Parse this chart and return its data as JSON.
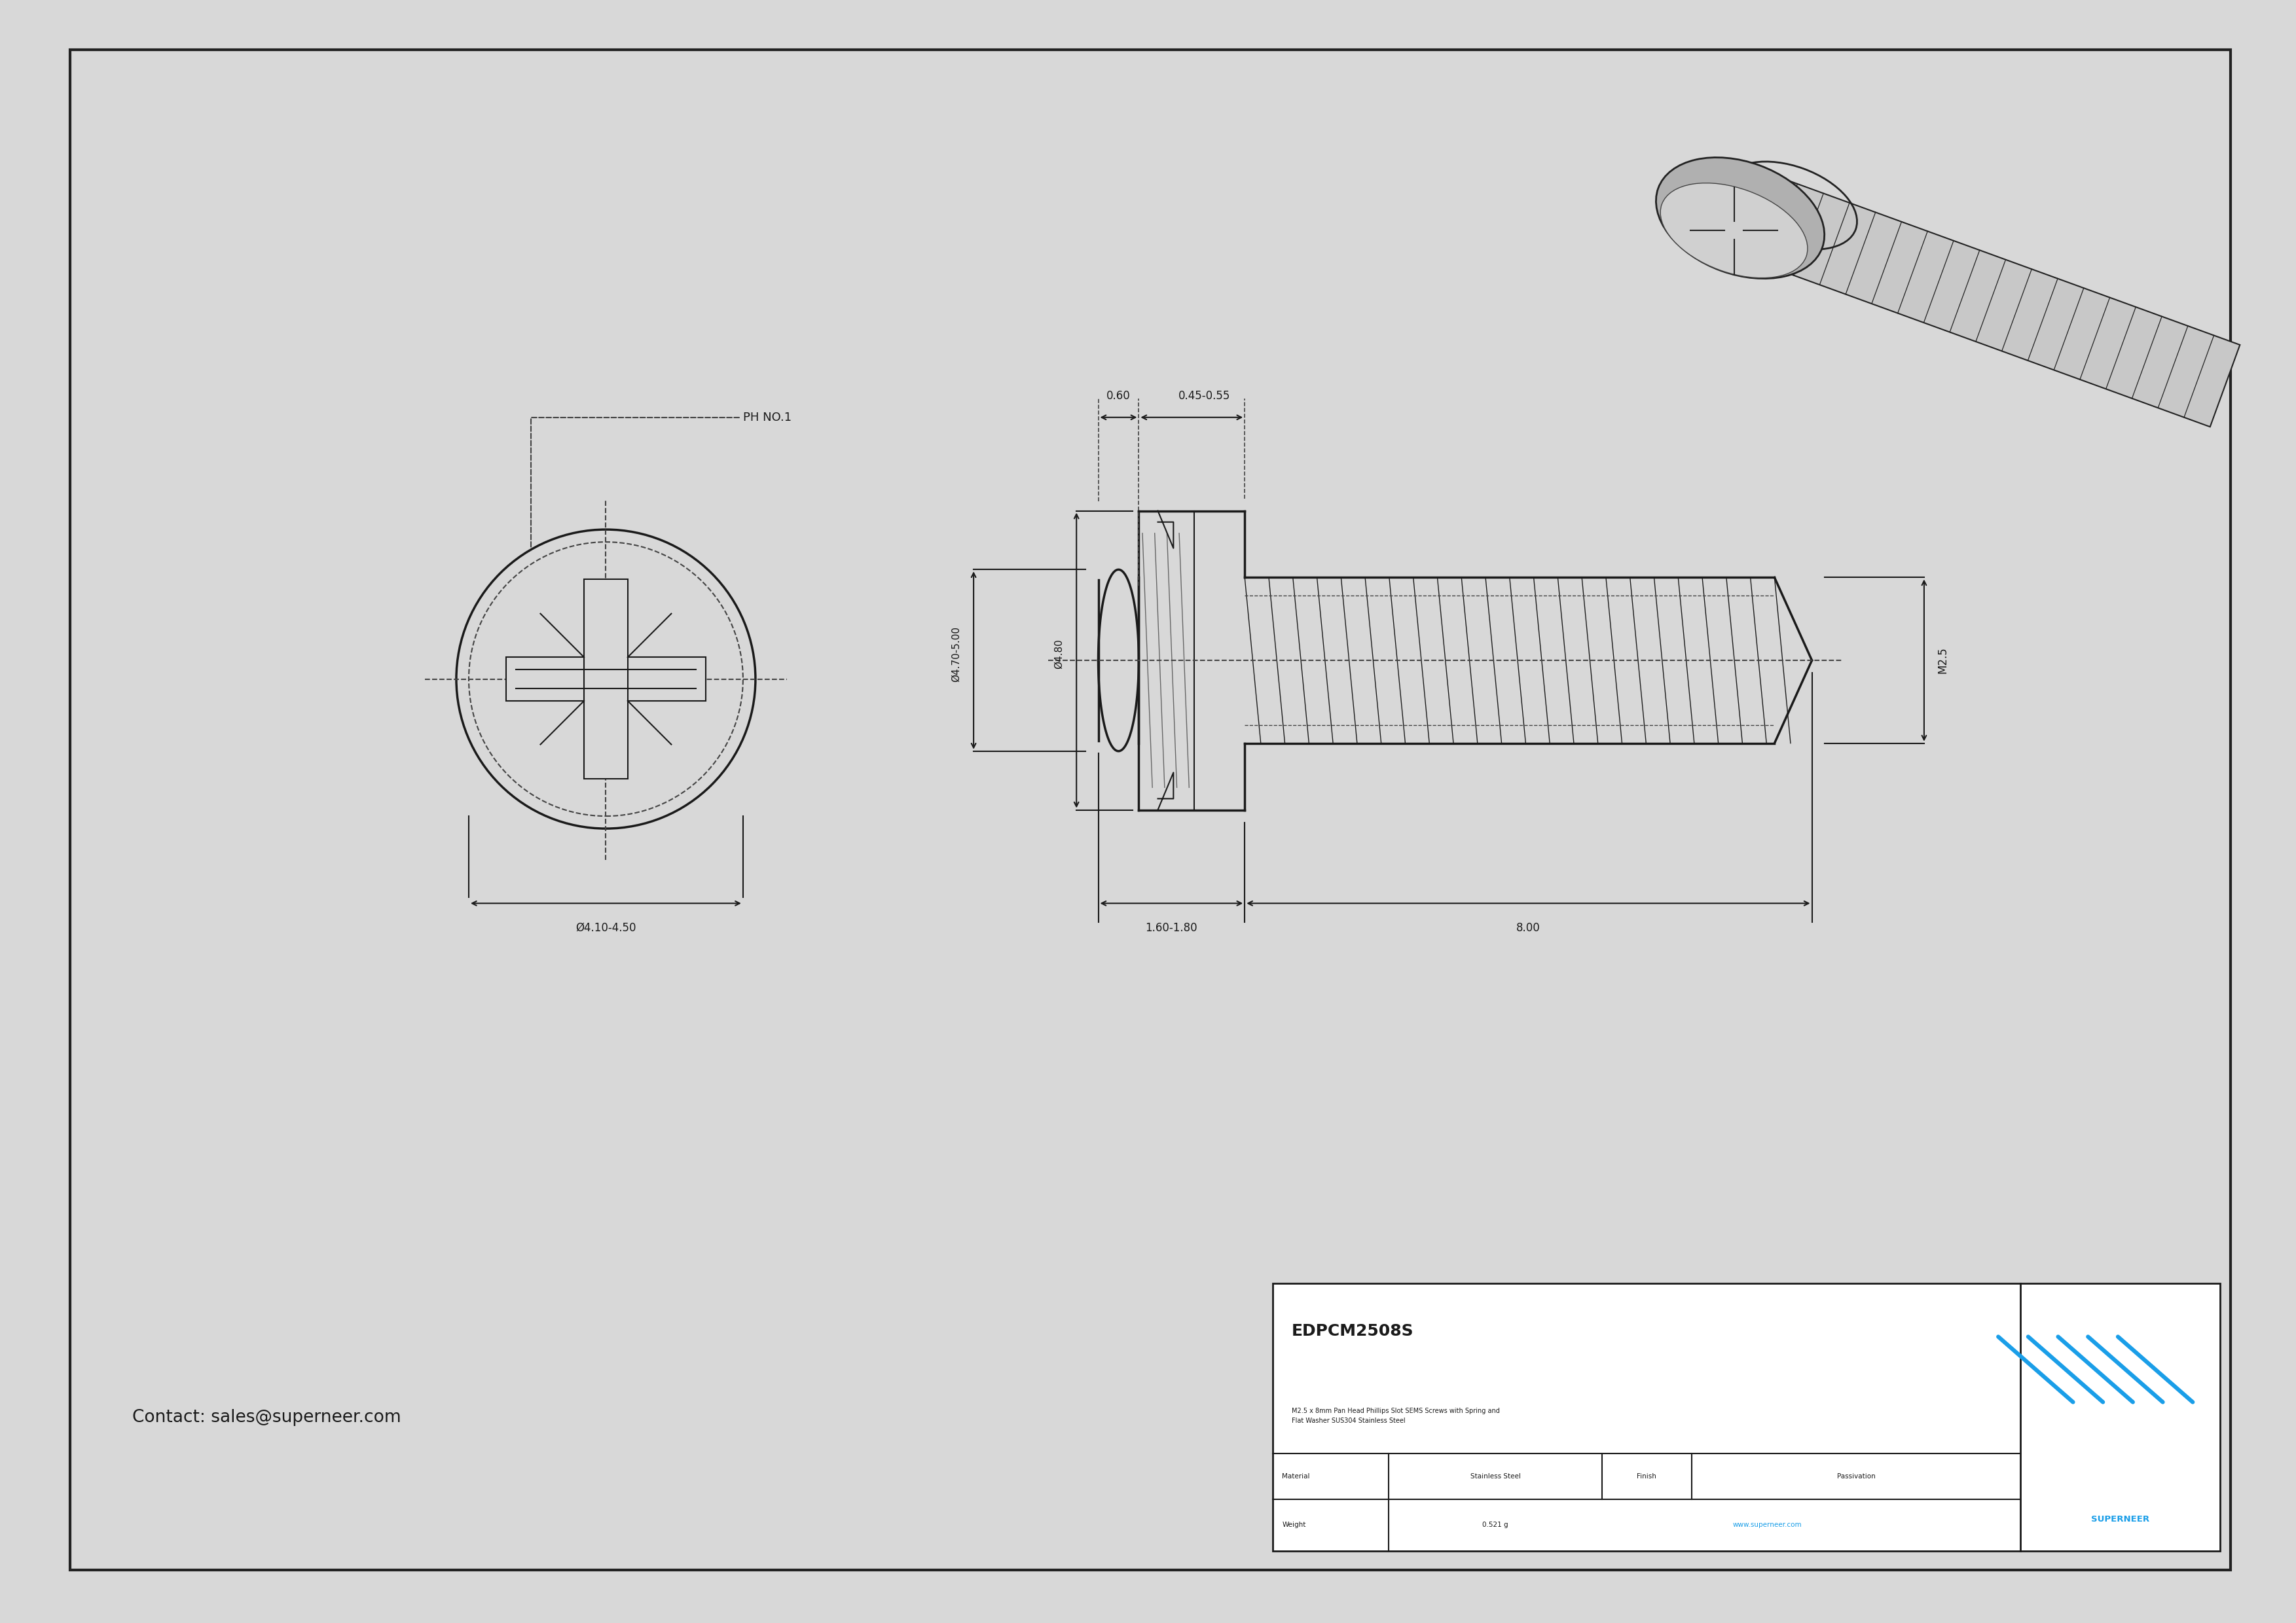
{
  "bg_color": "#d8d8d8",
  "inner_bg": "#ffffff",
  "border_color": "#222222",
  "line_color": "#1a1a1a",
  "dim_color": "#222222",
  "dashed_color": "#444444",
  "title_code": "EDPCM2508S",
  "title_desc": "M2.5 x 8mm Pan Head Phillips Slot SEMS Screws with Spring and\nFlat Washer SUS304 Stainless Steel",
  "material": "Stainless Steel",
  "finish": "Passivation",
  "weight": "0.521 g",
  "website": "www.superneer.com",
  "contact": "Contact: sales@superneer.com",
  "company": "SUPERNEER",
  "blue_color": "#1a9ee8",
  "dim_head_outer": "Ø4.70-5.00",
  "dim_head_inner": "Ø4.80",
  "dim_body": "Ø4.10-4.50",
  "dim_thread": "M2.5",
  "dim_head_height": "0.60",
  "dim_washer_height": "0.45-0.55",
  "dim_sems_length": "1.60-1.80",
  "dim_thread_length": "8.00",
  "label_ph": "PH NO.1"
}
